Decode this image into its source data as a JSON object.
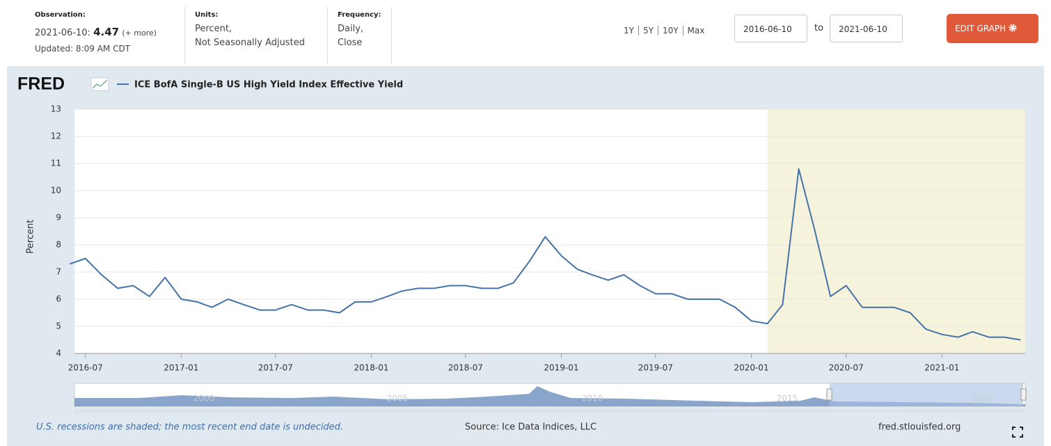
{
  "header": {
    "observation_label": "Observation:",
    "observation_date": "2021-06-10:",
    "observation_value": "4.47",
    "more": "(+ more)",
    "updated": "Updated: 8:09 AM CDT",
    "units_label": "Units:",
    "units": [
      "Percent,",
      "Not Seasonally Adjusted"
    ],
    "frequency_label": "Frequency:",
    "frequency": [
      "Daily,",
      "Close"
    ],
    "ranges": [
      "1Y",
      "5Y",
      "10Y",
      "Max"
    ],
    "date_from": "2016-06-10",
    "to": "to",
    "date_to": "2021-06-10",
    "edit_button": "EDIT GRAPH"
  },
  "logo": "FRED",
  "chart_data": {
    "type": "line",
    "ylabel": "Percent",
    "x": [
      "2016-06",
      "2016-07",
      "2016-08",
      "2016-09",
      "2016-10",
      "2016-11",
      "2016-12",
      "2017-01",
      "2017-02",
      "2017-03",
      "2017-04",
      "2017-05",
      "2017-06",
      "2017-07",
      "2017-08",
      "2017-09",
      "2017-10",
      "2017-11",
      "2017-12",
      "2018-01",
      "2018-02",
      "2018-03",
      "2018-04",
      "2018-05",
      "2018-06",
      "2018-07",
      "2018-08",
      "2018-09",
      "2018-10",
      "2018-11",
      "2018-12",
      "2019-01",
      "2019-02",
      "2019-03",
      "2019-04",
      "2019-05",
      "2019-06",
      "2019-07",
      "2019-08",
      "2019-09",
      "2019-10",
      "2019-11",
      "2019-12",
      "2020-01",
      "2020-02",
      "2020-03",
      "2020-04",
      "2020-05",
      "2020-06",
      "2020-07",
      "2020-08",
      "2020-09",
      "2020-10",
      "2020-11",
      "2020-12",
      "2021-01",
      "2021-02",
      "2021-03",
      "2021-04",
      "2021-05",
      "2021-06"
    ],
    "series": [
      {
        "name": "ICE BofA Single-B US High Yield Index Effective Yield",
        "color": "#4572a7",
        "values": [
          7.3,
          7.5,
          6.9,
          6.4,
          6.5,
          6.1,
          6.8,
          6.0,
          5.9,
          5.7,
          6.0,
          5.8,
          5.6,
          5.6,
          5.8,
          5.6,
          5.6,
          5.5,
          5.9,
          5.9,
          6.1,
          6.3,
          6.4,
          6.4,
          6.5,
          6.5,
          6.4,
          6.4,
          6.6,
          7.4,
          8.3,
          7.6,
          7.1,
          6.9,
          6.7,
          6.9,
          6.5,
          6.2,
          6.2,
          6.0,
          6.0,
          6.0,
          5.7,
          5.2,
          5.1,
          5.8,
          10.8,
          8.6,
          6.1,
          6.5,
          5.7,
          5.7,
          5.7,
          5.5,
          4.9,
          4.7,
          4.6,
          4.8,
          4.6,
          4.6,
          4.5
        ]
      }
    ],
    "xlim": [
      "2016-06-10",
      "2021-06-10"
    ],
    "xticks": [
      "2016-07",
      "2017-01",
      "2017-07",
      "2018-01",
      "2018-07",
      "2019-01",
      "2019-07",
      "2020-01",
      "2020-07",
      "2021-01"
    ],
    "ylim": [
      4,
      13
    ],
    "yticks": [
      4,
      5,
      6,
      7,
      8,
      9,
      10,
      11,
      12,
      13
    ],
    "grid": true,
    "recessions": [
      [
        "2020-02",
        "2021-06-10"
      ]
    ],
    "recession_color": "#f5f3dc"
  },
  "navigator": {
    "labels": [
      "2000",
      "2005",
      "2010",
      "2015",
      "2020"
    ]
  },
  "footer": {
    "note": "U.S. recessions are shaded; the most recent end date is undecided.",
    "source": "Source: Ice Data Indices, LLC",
    "site": "fred.stlouisfed.org"
  }
}
